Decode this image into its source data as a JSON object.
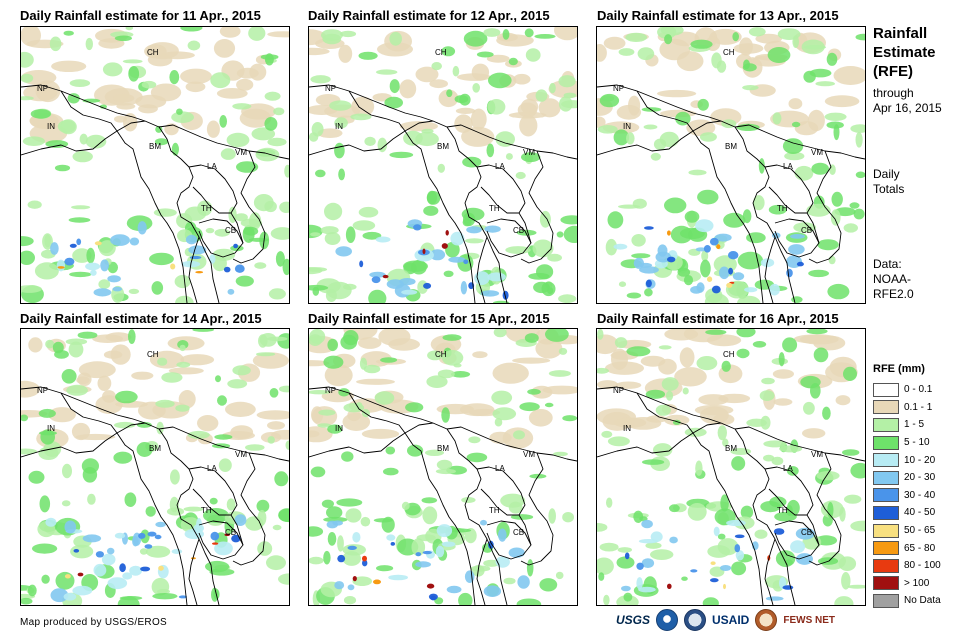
{
  "panels": [
    {
      "title": "Daily Rainfall estimate for 11 Apr., 2015",
      "seed": 11,
      "intensity": 0.9
    },
    {
      "title": "Daily Rainfall estimate for 12 Apr., 2015",
      "seed": 12,
      "intensity": 1.0
    },
    {
      "title": "Daily Rainfall estimate for 13 Apr., 2015",
      "seed": 13,
      "intensity": 1.3
    },
    {
      "title": "Daily Rainfall estimate for 14 Apr., 2015",
      "seed": 14,
      "intensity": 1.4
    },
    {
      "title": "Daily Rainfall estimate for 15 Apr., 2015",
      "seed": 15,
      "intensity": 1.1
    },
    {
      "title": "Daily Rainfall estimate for 16 Apr., 2015",
      "seed": 16,
      "intensity": 1.0
    }
  ],
  "country_labels": [
    "CH",
    "NP",
    "IN",
    "BM",
    "LA",
    "VM",
    "TH",
    "CB"
  ],
  "side": {
    "title_lines": [
      "Rainfall",
      "Estimate",
      "(RFE)"
    ],
    "through_lines": [
      "through",
      "Apr 16, 2015"
    ],
    "daily_lines": [
      "Daily",
      "Totals"
    ],
    "data_lines": [
      "Data:",
      "NOAA-",
      "RFE2.0"
    ]
  },
  "legend": {
    "title": "RFE (mm)",
    "items": [
      {
        "label": "0 - 0.1",
        "color": "#ffffff"
      },
      {
        "label": "0.1 - 1",
        "color": "#e8d8b8"
      },
      {
        "label": "1 - 5",
        "color": "#b4f0a6"
      },
      {
        "label": "5 - 10",
        "color": "#6ee26a"
      },
      {
        "label": "10 - 20",
        "color": "#b8ecf4"
      },
      {
        "label": "20 - 30",
        "color": "#82c8f0"
      },
      {
        "label": "30 - 40",
        "color": "#4a94ea"
      },
      {
        "label": "40 - 50",
        "color": "#1e5ed8"
      },
      {
        "label": "50 - 65",
        "color": "#f8e080"
      },
      {
        "label": "65 - 80",
        "color": "#f79a12"
      },
      {
        "label": "80 - 100",
        "color": "#e83a10"
      },
      {
        "label": "> 100",
        "color": "#a01010"
      },
      {
        "label": "No Data",
        "color": "#a0a0a0"
      }
    ]
  },
  "footer": {
    "credit": "Map produced by USGS/EROS",
    "logos": [
      "USGS",
      "USAID",
      "FEWS NET"
    ]
  }
}
